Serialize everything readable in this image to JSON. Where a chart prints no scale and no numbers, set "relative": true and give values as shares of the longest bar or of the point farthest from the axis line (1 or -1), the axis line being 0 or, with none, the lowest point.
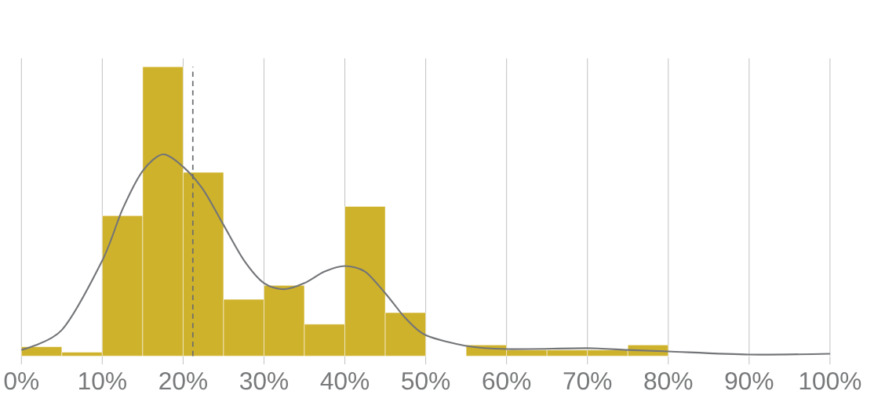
{
  "chart_data": {
    "type": "histogram",
    "relative": true,
    "color": "#cfb22b",
    "bins": [
      0,
      5,
      10,
      15,
      20,
      25,
      30,
      35,
      40,
      45,
      50,
      55,
      60,
      65,
      70,
      75,
      80,
      85,
      90,
      95,
      100
    ],
    "values": [
      0.032,
      0.013,
      0.485,
      1,
      0.635,
      0.196,
      0.244,
      0.11,
      0.517,
      0.15,
      0,
      0.038,
      0.021,
      0.021,
      0.021,
      0.038,
      0,
      0,
      0,
      0
    ],
    "series": [
      {
        "type": "line",
        "color": "#737578",
        "x": [
          0,
          5,
          10,
          12.5,
          15,
          17.5,
          20,
          22.5,
          25,
          27.5,
          30,
          32.5,
          35,
          37.5,
          40,
          42.5,
          45,
          47.5,
          50,
          55,
          60,
          70,
          75,
          80,
          90,
          100
        ],
        "values": [
          0.021,
          0.09,
          0.33,
          0.507,
          0.64,
          0.697,
          0.654,
          0.574,
          0.453,
          0.332,
          0.252,
          0.231,
          0.252,
          0.292,
          0.311,
          0.292,
          0.217,
          0.131,
          0.072,
          0.035,
          0.024,
          0.027,
          0.021,
          0.016,
          0.005,
          0.008
        ]
      }
    ],
    "xlim": [
      0,
      100
    ],
    "xticks": [
      {
        "value": 0,
        "label": "0%"
      },
      {
        "value": 10,
        "label": "10%"
      },
      {
        "value": 20,
        "label": "20%"
      },
      {
        "value": 30,
        "label": "30%"
      },
      {
        "value": 40,
        "label": "40%"
      },
      {
        "value": 50,
        "label": "50%"
      },
      {
        "value": 60,
        "label": "60%"
      },
      {
        "value": 70,
        "label": "70%"
      },
      {
        "value": 80,
        "label": "80%"
      },
      {
        "value": 90,
        "label": "90%"
      },
      {
        "value": 100,
        "label": "100%"
      }
    ],
    "grid": "x",
    "ref_lines": [
      {
        "axis": "x",
        "value": 21.2,
        "color": "#6b6d70",
        "line_style": "dashed"
      }
    ]
  }
}
